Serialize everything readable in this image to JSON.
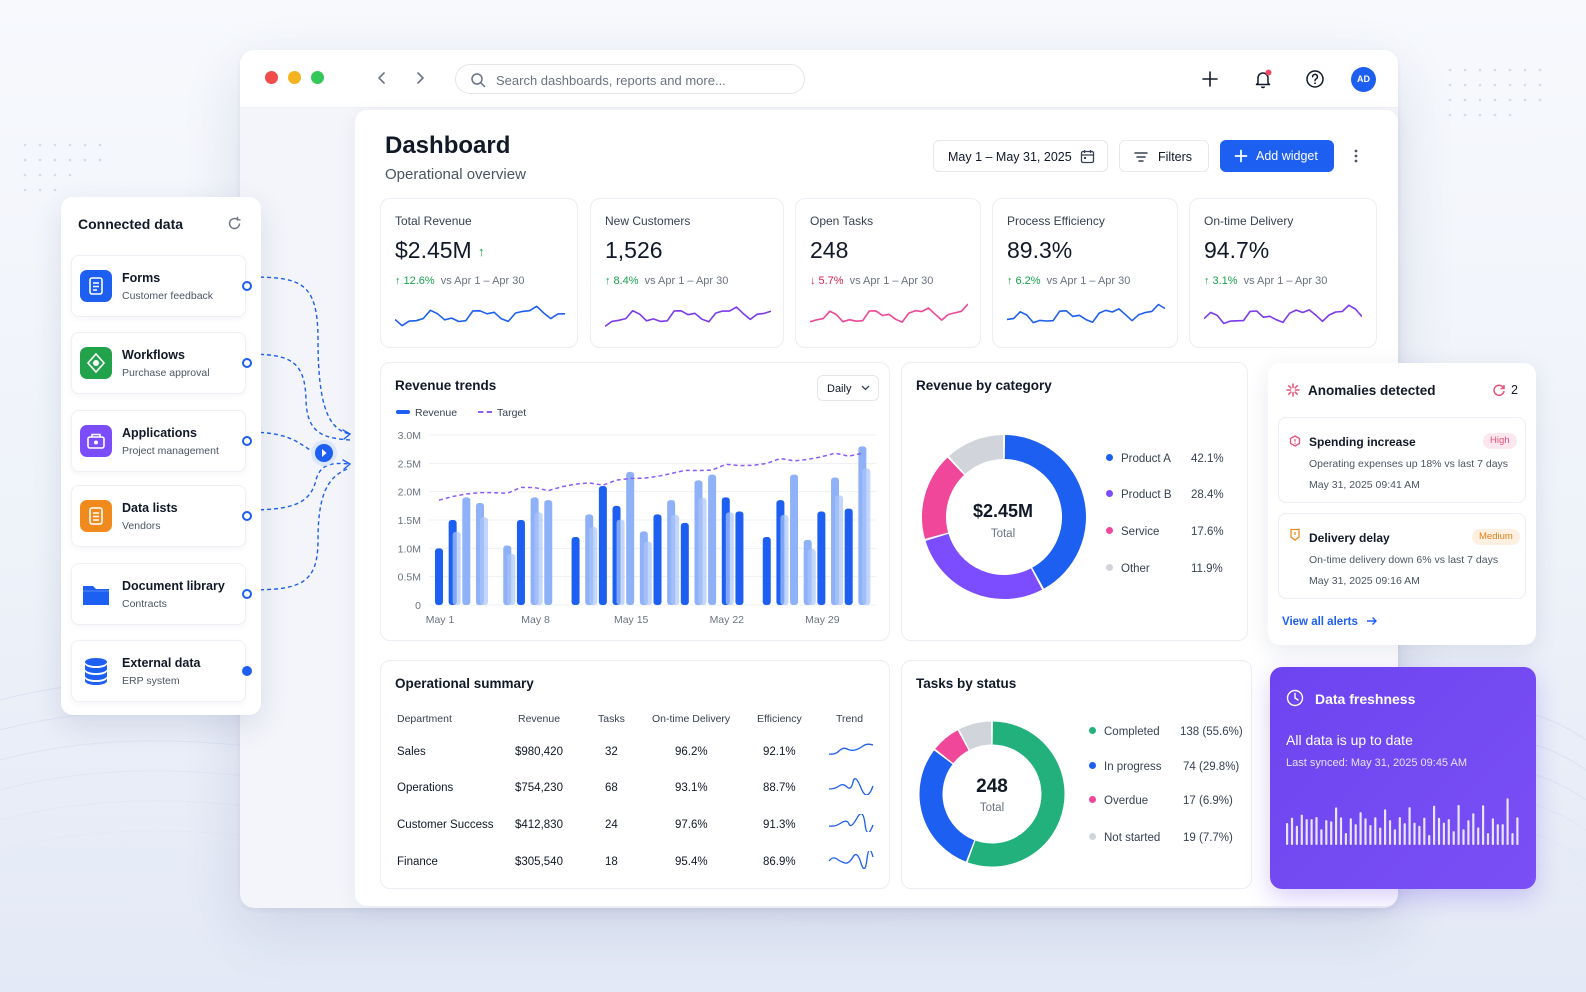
{
  "search": {
    "placeholder": "Search dashboards, reports and more..."
  },
  "user": {
    "initials": "AD"
  },
  "header": {
    "title": "Dashboard",
    "subtitle": "Operational overview",
    "date_range": "May 1 – May 31, 2025",
    "filters_label": "Filters",
    "add_widget_label": "Add widget"
  },
  "kpis": [
    {
      "title": "Total Revenue",
      "value": "$2.45M",
      "direction": "up",
      "delta": "12.6%",
      "period": "vs Apr 1 – Apr 30",
      "color": "#1d5ff0"
    },
    {
      "title": "New Customers",
      "value": "1,526",
      "direction": "up",
      "delta": "8.4%",
      "period": "vs Apr 1 – Apr 30",
      "color": "#7c3aed"
    },
    {
      "title": "Open Tasks",
      "value": "248",
      "direction": "down",
      "delta": "5.7%",
      "period": "vs Apr 1 – Apr 30",
      "color": "#ec4899"
    },
    {
      "title": "Process Efficiency",
      "value": "89.3%",
      "direction": "up",
      "delta": "6.2%",
      "period": "vs Apr 1 – Apr 30",
      "color": "#1d5ff0"
    },
    {
      "title": "On-time Delivery",
      "value": "94.7%",
      "direction": "up",
      "delta": "3.1%",
      "period": "vs Apr 1 – Apr 30",
      "color": "#7c3aed"
    }
  ],
  "revenue_trends": {
    "title": "Revenue trends",
    "granularity": "Daily",
    "legend": {
      "revenue": "Revenue",
      "target": "Target"
    },
    "chart_data": {
      "type": "bar",
      "title": "Revenue trends",
      "series": [
        {
          "name": "Revenue",
          "values": [
            1.0,
            1.5,
            1.9,
            1.8,
            null,
            1.05,
            1.5,
            1.9,
            1.85,
            null,
            1.2,
            1.6,
            2.1,
            1.75,
            2.35,
            1.3,
            1.6,
            1.85,
            1.45,
            2.2,
            2.3,
            1.9,
            1.65,
            null,
            1.2,
            1.85,
            2.3,
            1.15,
            1.65,
            2.25,
            1.7,
            2.8
          ]
        },
        {
          "name": "Target",
          "values": [
            1.85,
            1.95,
            1.95,
            1.95,
            2.0,
            2.0,
            2.05,
            2.05,
            2.05,
            2.1,
            2.1,
            2.15,
            2.15,
            2.2,
            2.2,
            2.25,
            2.3,
            2.3,
            2.35,
            2.4,
            2.4,
            2.45,
            2.45,
            2.5,
            2.5,
            2.55,
            2.55,
            2.6,
            2.6,
            2.65,
            2.65,
            2.7
          ]
        }
      ],
      "ylim": [
        0,
        3.0
      ],
      "yticks": [
        "0",
        "0.5M",
        "1.0M",
        "1.5M",
        "2.0M",
        "2.5M",
        "3.0M"
      ],
      "xticks": [
        "May 1",
        "May 8",
        "May 15",
        "May 22",
        "May 29"
      ],
      "grid": true
    }
  },
  "revenue_by_category": {
    "title": "Revenue by category",
    "center_value": "$2.45M",
    "center_label": "Total",
    "chart_data": {
      "type": "pie",
      "labels": [
        "Product A",
        "Product B",
        "Service",
        "Other"
      ],
      "values": [
        42.1,
        28.4,
        17.6,
        11.9
      ],
      "display": [
        "42.1%",
        "28.4%",
        "17.6%",
        "11.9%"
      ],
      "colors": [
        "#1d5ff0",
        "#7c4dff",
        "#f0479a",
        "#d1d5db"
      ]
    }
  },
  "operational_summary": {
    "title": "Operational summary",
    "columns": [
      "Department",
      "Revenue",
      "Tasks",
      "On-time Delivery",
      "Efficiency",
      "Trend"
    ],
    "rows": [
      {
        "department": "Sales",
        "revenue": "$980,420",
        "tasks": "32",
        "ontime": "96.2%",
        "efficiency": "92.1%"
      },
      {
        "department": "Operations",
        "revenue": "$754,230",
        "tasks": "68",
        "ontime": "93.1%",
        "efficiency": "88.7%"
      },
      {
        "department": "Customer Success",
        "revenue": "$412,830",
        "tasks": "24",
        "ontime": "97.6%",
        "efficiency": "91.3%"
      },
      {
        "department": "Finance",
        "revenue": "$305,540",
        "tasks": "18",
        "ontime": "95.4%",
        "efficiency": "86.9%"
      }
    ]
  },
  "tasks_by_status": {
    "title": "Tasks by status",
    "center_value": "248",
    "center_label": "Total",
    "chart_data": {
      "type": "pie",
      "labels": [
        "Completed",
        "In progress",
        "Overdue",
        "Not started"
      ],
      "values": [
        138,
        74,
        17,
        19
      ],
      "display": [
        "138 (55.6%)",
        "74 (29.8%)",
        "17 (6.9%)",
        "19 (7.7%)"
      ],
      "colors": [
        "#22b07d",
        "#1d5ff0",
        "#f0479a",
        "#d1d5db"
      ]
    }
  },
  "anomalies": {
    "title": "Anomalies detected",
    "count": "2",
    "alerts": [
      {
        "title": "Spending increase",
        "severity": "High",
        "description": "Operating expenses up 18% vs last 7 days",
        "time": "May 31, 2025 09:41 AM"
      },
      {
        "title": "Delivery delay",
        "severity": "Medium",
        "description": "On-time delivery down 6% vs last 7 days",
        "time": "May 31, 2025 09:16 AM"
      }
    ],
    "view_all": "View all alerts"
  },
  "freshness": {
    "title": "Data freshness",
    "status": "All data is up to date",
    "last_synced": "Last synced: May 31, 2025 09:45 AM"
  },
  "connected": {
    "title": "Connected data",
    "sources": [
      {
        "name": "Forms",
        "sub": "Customer feedback",
        "color": "#1d5ff0",
        "icon": "form-icon"
      },
      {
        "name": "Workflows",
        "sub": "Purchase approval",
        "color": "#22a24a",
        "icon": "workflow-icon"
      },
      {
        "name": "Applications",
        "sub": "Project management",
        "color": "#7c4dff",
        "icon": "application-icon"
      },
      {
        "name": "Data lists",
        "sub": "Vendors",
        "color": "#f08a1c",
        "icon": "list-icon"
      },
      {
        "name": "Document library",
        "sub": "Contracts",
        "color": "#1d5ff0",
        "icon": "folder-icon"
      },
      {
        "name": "External data",
        "sub": "ERP system",
        "color": "#1d5ff0",
        "icon": "database-icon"
      }
    ]
  }
}
